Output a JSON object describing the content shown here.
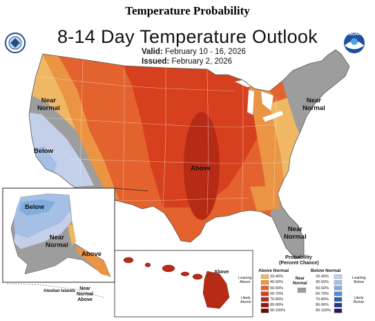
{
  "header": {
    "title": "Temperature Probability"
  },
  "map": {
    "title": "8-14 Day Temperature Outlook",
    "valid_label": "Valid:",
    "valid_dates": "February 10 - 16, 2026",
    "issued_label": "Issued:",
    "issued_date": "February 2, 2026",
    "logo_left": "doc-seal-icon",
    "logo_right": "noaa-logo-icon",
    "logo_right_text": "NOAA",
    "region_labels": {
      "near_normal_west": [
        "Near",
        "Normal"
      ],
      "below_west": "Below",
      "above_central": "Above",
      "near_normal_northeast": [
        "Near",
        "Normal"
      ],
      "near_normal_florida": [
        "Near",
        "Normal"
      ]
    },
    "alaska": {
      "below": "Below",
      "near_normal": [
        "Near",
        "Normal"
      ],
      "above": "Above",
      "aleutian": "Aleutian Islands",
      "aleutian_category": [
        "Near",
        "Normal",
        "Above"
      ]
    },
    "hawaii": {
      "above": "Above"
    }
  },
  "legend": {
    "title": "Probability",
    "subtitle": "(Percent Chance)",
    "above_header": "Above Normal",
    "below_header": "Below Normal",
    "near_normal": [
      "Near",
      "Normal"
    ],
    "above_leaning": [
      "Leaning",
      "Above"
    ],
    "above_likely": [
      "Likely",
      "Above"
    ],
    "below_leaning": [
      "Leaning",
      "Below"
    ],
    "below_likely": [
      "Likely",
      "Below"
    ],
    "ranges": [
      "33-40%",
      "40-50%",
      "50-60%",
      "60-70%",
      "70-80%",
      "80-90%",
      "90-100%"
    ],
    "above_colors": [
      "#f0b865",
      "#ea9444",
      "#e4622e",
      "#d6401f",
      "#b62b16",
      "#8f1c10",
      "#5c0f08"
    ],
    "below_colors": [
      "#c4cfea",
      "#a5c0e4",
      "#7faedf",
      "#4f8fd2",
      "#2a5fae",
      "#1f3d87",
      "#261a4f"
    ],
    "near_normal_color": "#9d9d9d"
  }
}
